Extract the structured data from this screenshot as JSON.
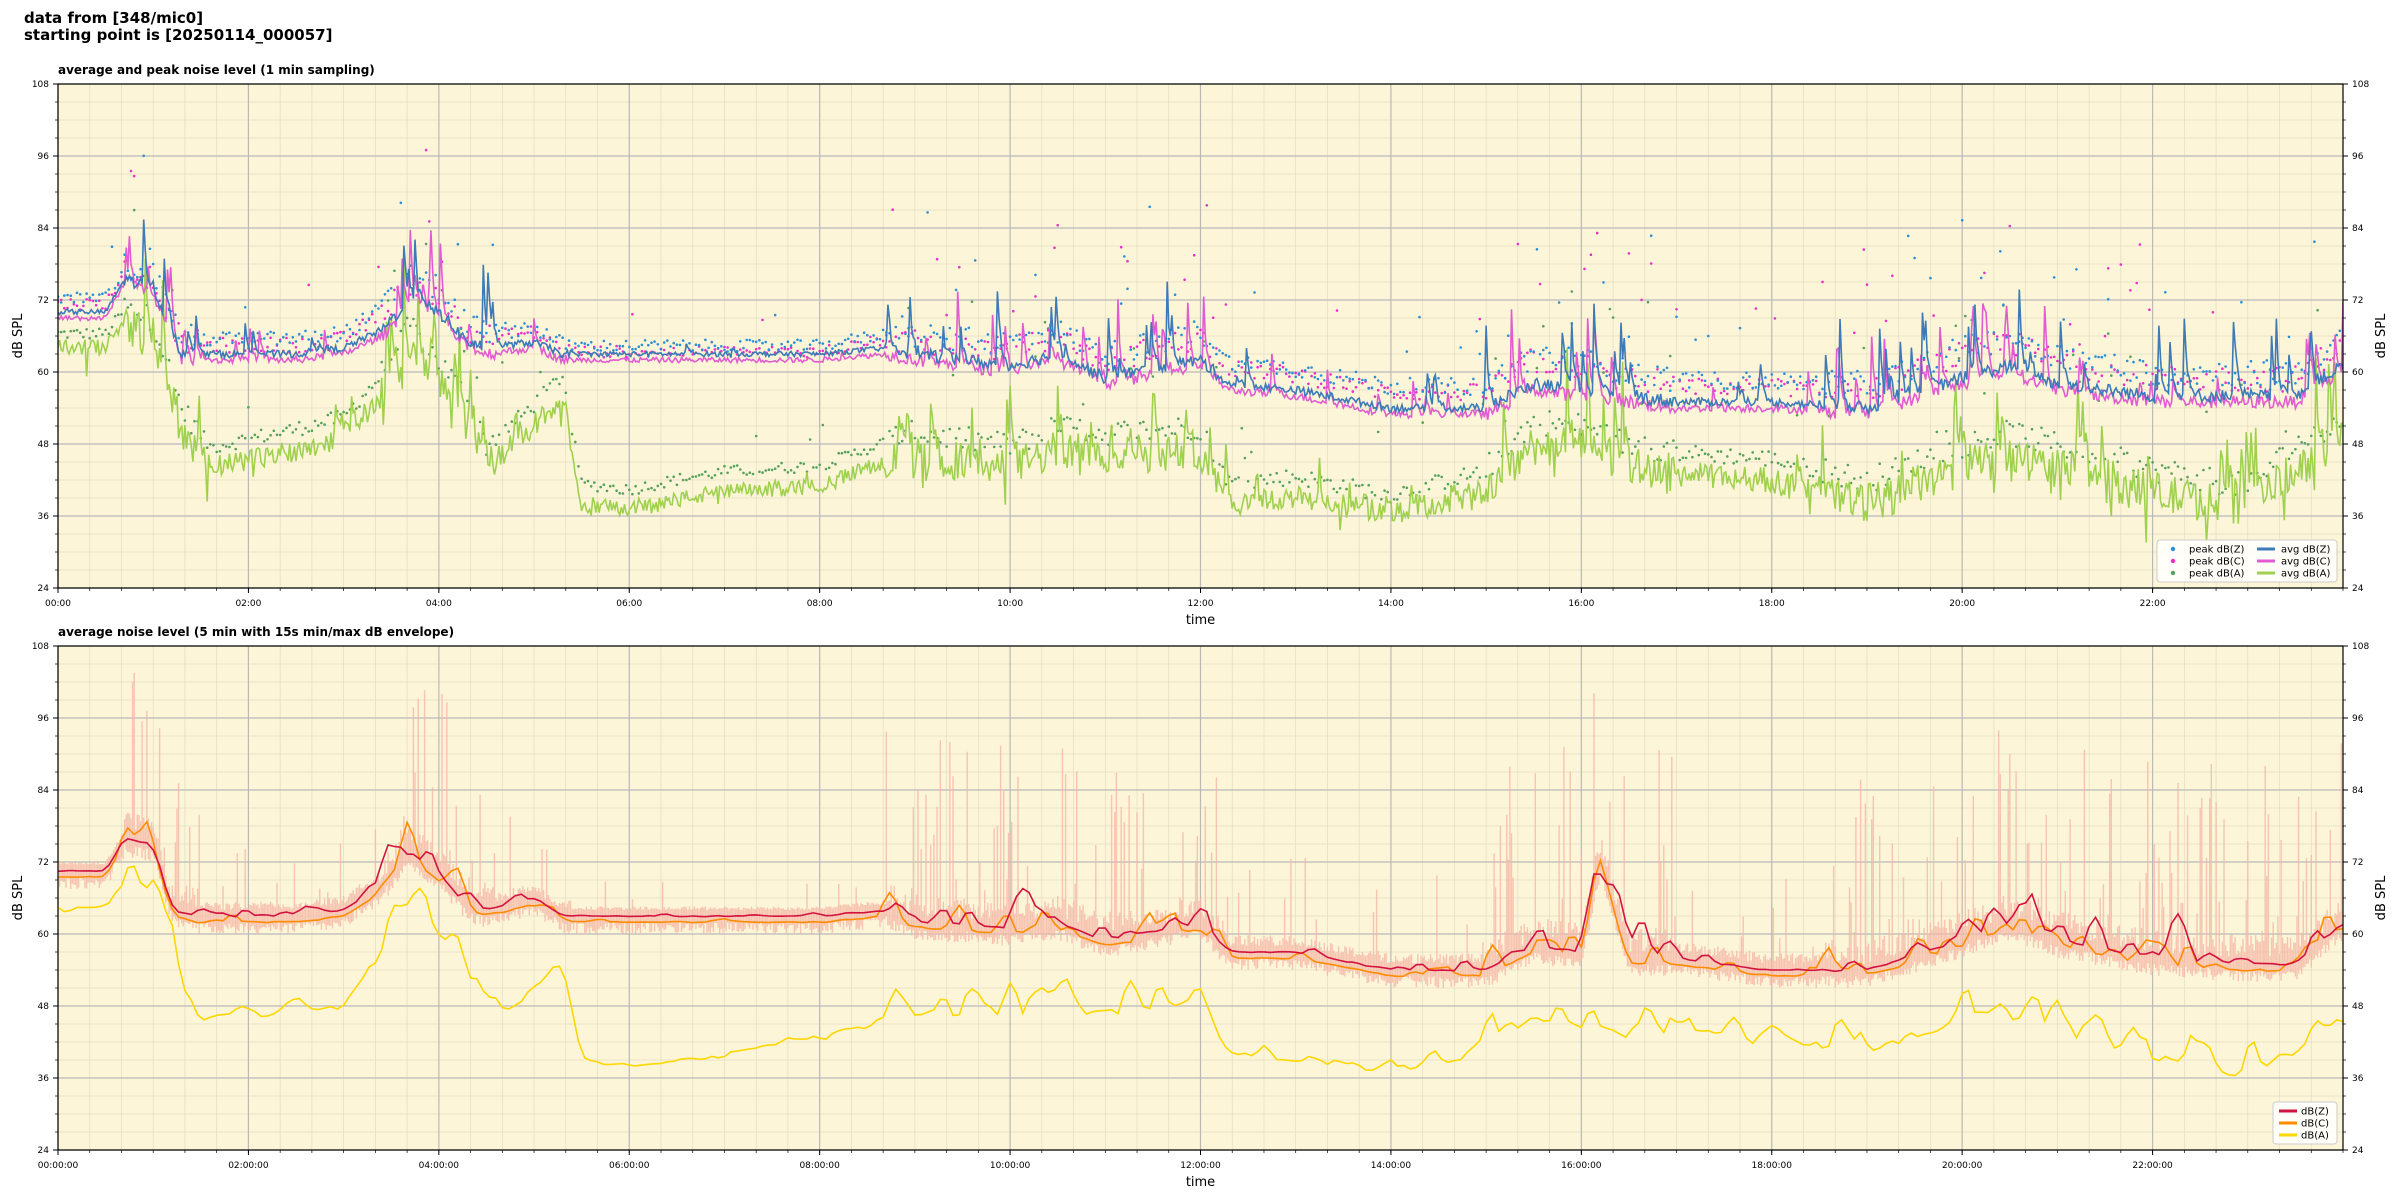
{
  "header": {
    "line1": "data from [348/mic0]",
    "line2": "starting point is [20250114_000057]"
  },
  "colors": {
    "background": "#fdf5d8",
    "peak_z": "#2b8fd6",
    "peak_c": "#e830c8",
    "peak_a": "#55a05a",
    "avg_z": "#3c7ab8",
    "avg_c": "#e05cd0",
    "avg_a": "#9fd14f",
    "dbz": "#d4123f",
    "dbc": "#ff8c00",
    "dba": "#ffd700",
    "envelope": "#f5b8a8"
  },
  "chart_data": [
    {
      "type": "line",
      "title": "average and peak noise level (1 min sampling)",
      "xlabel": "time",
      "ylabel": "dB SPL",
      "xlim": [
        "00:00",
        "24:00"
      ],
      "ylim": [
        24,
        108
      ],
      "yticks": [
        24,
        36,
        48,
        60,
        72,
        84,
        96,
        108
      ],
      "xtick_labels": [
        "00:00",
        "02:00",
        "04:00",
        "06:00",
        "08:00",
        "10:00",
        "12:00",
        "14:00",
        "16:00",
        "18:00",
        "20:00",
        "22:00"
      ],
      "grid": true,
      "legend_position": "lower-right",
      "legend": [
        "peak dB(Z)",
        "peak dB(C)",
        "peak dB(A)",
        "avg dB(Z)",
        "avg dB(C)",
        "avg dB(A)"
      ],
      "series": [
        {
          "name": "avg dB(Z)",
          "hours": [
            0,
            0.5,
            0.7,
            1.0,
            1.3,
            1.6,
            2.5,
            3.0,
            3.4,
            3.7,
            4.0,
            4.3,
            4.5,
            5.0,
            5.3,
            6.0,
            6.6,
            7.0,
            8.0,
            8.7,
            9.0,
            10.0,
            10.5,
            11.0,
            12.0,
            12.3,
            13.0,
            14.0,
            15.0,
            15.5,
            16.0,
            16.5,
            17.0,
            18.0,
            19.0,
            20.0,
            20.5,
            21.0,
            22.0,
            23.0,
            23.5,
            24.0
          ],
          "values": [
            70,
            70,
            75.5,
            74,
            63,
            63,
            63,
            64,
            67,
            72,
            70,
            65,
            64,
            65,
            63,
            63,
            63,
            63,
            63,
            64,
            63,
            61,
            63,
            59,
            62,
            58,
            57,
            54,
            54,
            58,
            57,
            56,
            55,
            55,
            54,
            59,
            61,
            58,
            56,
            56,
            56,
            61
          ]
        },
        {
          "name": "avg dB(C)",
          "hours": [
            0,
            0.5,
            0.7,
            1.0,
            1.3,
            1.6,
            2.5,
            3.0,
            3.4,
            3.7,
            4.0,
            4.3,
            4.5,
            5.0,
            5.3,
            6.0,
            6.6,
            7.0,
            8.0,
            8.7,
            9.0,
            10.0,
            10.5,
            11.0,
            12.0,
            12.3,
            13.0,
            14.0,
            15.0,
            15.5,
            16.0,
            16.5,
            17.0,
            18.0,
            19.0,
            20.0,
            20.5,
            21.0,
            22.0,
            23.0,
            23.5,
            24.0
          ],
          "values": [
            69,
            69,
            75,
            73,
            62,
            62,
            62,
            63,
            66,
            71,
            69,
            64,
            63,
            64,
            62,
            62,
            62,
            62,
            62,
            63,
            62,
            60,
            62,
            58,
            61,
            57,
            56,
            53,
            53,
            57,
            56,
            55,
            54,
            54,
            53,
            58,
            60,
            57,
            55,
            55,
            55,
            60
          ]
        },
        {
          "name": "avg dB(A)",
          "hours": [
            0,
            0.5,
            0.7,
            1.0,
            1.3,
            1.6,
            2.5,
            3.0,
            3.4,
            3.7,
            4.0,
            4.3,
            4.5,
            5.0,
            5.3,
            5.5,
            6.0,
            6.6,
            7.0,
            8.0,
            8.7,
            9.0,
            10.0,
            10.5,
            11.0,
            12.0,
            12.3,
            13.0,
            14.0,
            15.0,
            15.5,
            16.0,
            16.5,
            17.0,
            18.0,
            19.0,
            20.0,
            20.5,
            21.0,
            22.0,
            23.0,
            23.5,
            24.0
          ],
          "values": [
            64,
            64,
            68,
            66,
            50,
            44,
            47,
            49,
            56,
            64,
            58,
            52,
            44,
            51,
            56,
            38,
            37,
            39,
            40,
            41,
            45,
            46,
            44,
            47,
            46,
            47,
            38,
            39,
            36,
            40,
            48,
            47,
            44,
            43,
            42,
            38,
            44,
            46,
            44,
            40,
            37,
            44,
            48
          ]
        },
        {
          "name": "peak dB(Z)",
          "hours": [
            0,
            0.5,
            0.7,
            1.0,
            1.3,
            1.6,
            2.5,
            3.0,
            3.4,
            3.7,
            4.0,
            4.3,
            4.5,
            5.0,
            5.3,
            6.0,
            6.6,
            7.0,
            8.0,
            8.7,
            9.0,
            10.0,
            10.5,
            11.0,
            12.0,
            12.3,
            13.0,
            14.0,
            15.0,
            15.5,
            16.0,
            16.5,
            17.0,
            18.0,
            19.0,
            20.0,
            20.5,
            21.0,
            22.0,
            23.0,
            23.5,
            24.0
          ],
          "values": [
            72,
            72,
            77,
            76,
            65,
            65,
            65,
            66,
            70,
            75,
            73,
            67,
            66,
            67,
            64,
            64,
            64,
            64,
            64,
            66,
            65,
            64,
            66,
            62,
            66,
            61,
            60,
            57,
            57,
            62,
            61,
            59,
            58,
            58,
            57,
            63,
            65,
            62,
            59,
            59,
            59,
            65
          ]
        },
        {
          "name": "peak dB(C)",
          "hours": [
            0,
            0.5,
            0.7,
            1.0,
            1.3,
            1.6,
            2.5,
            3.0,
            3.4,
            3.7,
            4.0,
            4.3,
            4.5,
            5.0,
            5.3,
            6.0,
            6.6,
            7.0,
            8.0,
            8.7,
            9.0,
            10.0,
            10.5,
            11.0,
            12.0,
            12.3,
            13.0,
            14.0,
            15.0,
            15.5,
            16.0,
            16.5,
            17.0,
            18.0,
            19.0,
            20.0,
            20.5,
            21.0,
            22.0,
            23.0,
            23.5,
            24.0
          ],
          "values": [
            71,
            71,
            76,
            75,
            64,
            64,
            64,
            65,
            69,
            74,
            72,
            66,
            65,
            66,
            63,
            63,
            63,
            63,
            63,
            65,
            64,
            63,
            65,
            61,
            65,
            60,
            59,
            56,
            56,
            61,
            60,
            58,
            57,
            57,
            56,
            62,
            64,
            61,
            58,
            58,
            58,
            64
          ]
        },
        {
          "name": "peak dB(A)",
          "hours": [
            0,
            0.5,
            0.7,
            1.0,
            1.3,
            1.6,
            2.5,
            3.0,
            3.4,
            3.7,
            4.0,
            4.3,
            4.5,
            5.0,
            5.3,
            5.5,
            6.0,
            6.6,
            7.0,
            8.0,
            8.7,
            9.0,
            10.0,
            10.5,
            11.0,
            12.0,
            12.3,
            13.0,
            14.0,
            15.0,
            15.5,
            16.0,
            16.5,
            17.0,
            18.0,
            19.0,
            20.0,
            20.5,
            21.0,
            22.0,
            23.0,
            23.5,
            24.0
          ],
          "values": [
            66,
            66,
            70,
            68,
            53,
            47,
            50,
            52,
            59,
            67,
            61,
            55,
            47,
            54,
            59,
            41,
            40,
            42,
            43,
            44,
            48,
            49,
            47,
            50,
            49,
            50,
            41,
            42,
            39,
            43,
            51,
            50,
            47,
            46,
            45,
            41,
            47,
            49,
            47,
            43,
            40,
            47,
            51
          ]
        }
      ]
    },
    {
      "type": "line",
      "title": "average noise level (5 min with 15s min/max dB envelope)",
      "xlabel": "time",
      "ylabel": "dB SPL",
      "xlim": [
        "00:00:00",
        "24:00:00"
      ],
      "ylim": [
        24,
        108
      ],
      "yticks": [
        24,
        36,
        48,
        60,
        72,
        84,
        96,
        108
      ],
      "xtick_labels": [
        "00:00:00",
        "02:00:00",
        "04:00:00",
        "06:00:00",
        "08:00:00",
        "10:00:00",
        "12:00:00",
        "14:00:00",
        "16:00:00",
        "18:00:00",
        "20:00:00",
        "22:00:00"
      ],
      "grid": true,
      "legend_position": "lower-right",
      "legend": [
        "dB(Z)",
        "dB(C)",
        "dB(A)"
      ],
      "series": [
        {
          "name": "dB(Z)",
          "hours": [
            0,
            0.5,
            0.7,
            1.0,
            1.2,
            1.5,
            2.5,
            3.0,
            3.4,
            3.7,
            4.0,
            4.3,
            4.5,
            5.0,
            5.3,
            6.0,
            6.6,
            7.0,
            8.0,
            8.7,
            9.0,
            10.0,
            10.5,
            11.0,
            12.0,
            12.3,
            13.0,
            14.0,
            15.0,
            15.5,
            16.0,
            16.2,
            16.5,
            17.0,
            18.0,
            19.0,
            20.0,
            20.5,
            21.0,
            22.0,
            23.0,
            23.5,
            24.0
          ],
          "values": [
            70.5,
            70.5,
            76,
            75,
            64,
            63,
            63,
            64,
            68,
            74,
            70,
            65,
            64,
            66,
            63,
            63,
            63,
            63,
            63,
            64,
            62,
            61,
            62,
            59,
            62,
            57,
            57,
            54,
            54,
            58,
            57,
            72,
            56,
            56,
            54,
            54,
            59,
            62,
            59,
            56,
            55,
            55,
            62
          ]
        },
        {
          "name": "dB(C)",
          "hours": [
            0,
            0.5,
            0.7,
            1.0,
            1.2,
            1.5,
            2.5,
            3.0,
            3.4,
            3.7,
            4.0,
            4.3,
            4.5,
            5.0,
            5.3,
            6.0,
            6.6,
            7.0,
            8.0,
            8.7,
            9.0,
            10.0,
            10.5,
            11.0,
            12.0,
            12.3,
            13.0,
            14.0,
            15.0,
            15.5,
            16.0,
            16.2,
            16.5,
            17.0,
            18.0,
            19.0,
            20.0,
            20.5,
            21.0,
            22.0,
            23.0,
            23.5,
            24.0
          ],
          "values": [
            69.5,
            69.5,
            75,
            74,
            63,
            62,
            62,
            63,
            67,
            73,
            69,
            64,
            63,
            65,
            62,
            62,
            62,
            62,
            62,
            63,
            61,
            60,
            61,
            58,
            61,
            56,
            56,
            53,
            53,
            57,
            56,
            71,
            55,
            55,
            53,
            53,
            58,
            61,
            58,
            55,
            54,
            54,
            61
          ]
        },
        {
          "name": "dB(A)",
          "hours": [
            0,
            0.5,
            0.7,
            1.0,
            1.2,
            1.5,
            2.5,
            3.0,
            3.4,
            3.7,
            4.0,
            4.3,
            4.5,
            5.0,
            5.3,
            5.5,
            6.0,
            6.6,
            7.0,
            8.0,
            8.7,
            9.0,
            10.0,
            10.5,
            11.0,
            12.0,
            12.3,
            13.0,
            14.0,
            15.0,
            15.5,
            16.0,
            16.5,
            17.0,
            18.0,
            19.0,
            20.0,
            20.5,
            21.0,
            22.0,
            23.0,
            23.5,
            24.0
          ],
          "values": [
            64.5,
            64.5,
            69,
            67,
            55,
            46,
            47,
            48,
            57,
            67,
            59,
            55,
            45,
            51,
            56,
            39,
            38,
            39,
            40,
            43,
            46,
            47,
            47,
            48,
            47,
            49,
            40,
            39,
            37,
            40,
            47,
            44,
            43,
            44,
            43,
            39,
            46,
            48,
            44,
            40,
            37,
            41,
            46
          ]
        }
      ]
    }
  ]
}
